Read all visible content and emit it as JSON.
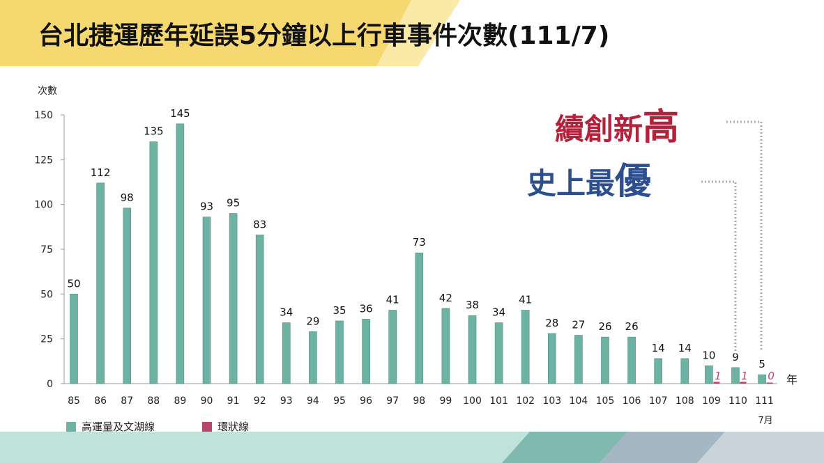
{
  "title": "台北捷運歷年延誤5分鐘以上行車事件次數(111/7)",
  "callouts": {
    "record_high_prefix": "續創新",
    "record_high_last": "高",
    "best_ever_prefix": "史上最",
    "best_ever_last": "優"
  },
  "colors": {
    "high_capacity": "#6db3a3",
    "circular": "#b9466a",
    "record_high_text": "#b4213a",
    "best_ever_text": "#2d4f8e",
    "banner_yellow": "#f6d871",
    "footer_teal": "#a9d8cc"
  },
  "chart_data": {
    "type": "bar",
    "ylabel": "次數",
    "xlabel": "年",
    "ylim": [
      0,
      150
    ],
    "yticks": [
      0,
      25,
      50,
      75,
      100,
      125,
      150
    ],
    "categories": [
      "85",
      "86",
      "87",
      "88",
      "89",
      "90",
      "91",
      "92",
      "93",
      "94",
      "95",
      "96",
      "97",
      "98",
      "99",
      "100",
      "101",
      "102",
      "103",
      "104",
      "105",
      "106",
      "107",
      "108",
      "109",
      "110",
      "111"
    ],
    "x_sublabel": "7月",
    "legend_position": "bottom-left",
    "series": [
      {
        "name": "高運量及文湖線",
        "values": [
          50,
          112,
          98,
          135,
          145,
          93,
          95,
          83,
          34,
          29,
          35,
          36,
          41,
          73,
          42,
          38,
          34,
          41,
          28,
          27,
          26,
          26,
          14,
          14,
          10,
          9,
          5
        ]
      },
      {
        "name": "環狀線",
        "values": [
          null,
          null,
          null,
          null,
          null,
          null,
          null,
          null,
          null,
          null,
          null,
          null,
          null,
          null,
          null,
          null,
          null,
          null,
          null,
          null,
          null,
          null,
          null,
          null,
          1,
          1,
          0
        ]
      }
    ]
  }
}
